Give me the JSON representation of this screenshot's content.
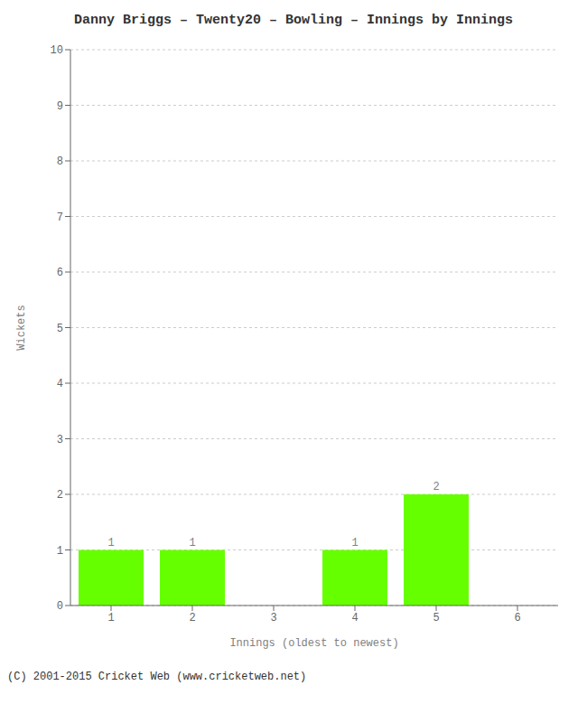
{
  "chart_data": {
    "type": "bar",
    "title": "Danny Briggs – Twenty20 – Bowling – Innings by Innings",
    "xlabel": "Innings (oldest to newest)",
    "ylabel": "Wickets",
    "categories": [
      1,
      2,
      3,
      4,
      5,
      6
    ],
    "values": [
      1,
      1,
      0,
      1,
      2,
      0
    ],
    "color": "#66ff00",
    "ylim": [
      0,
      10
    ],
    "yticks": [
      0,
      1,
      2,
      3,
      4,
      5,
      6,
      7,
      8,
      9,
      10
    ],
    "grid": true,
    "data_labels": true,
    "footer": "(C) 2001-2015 Cricket Web (www.cricketweb.net)"
  }
}
